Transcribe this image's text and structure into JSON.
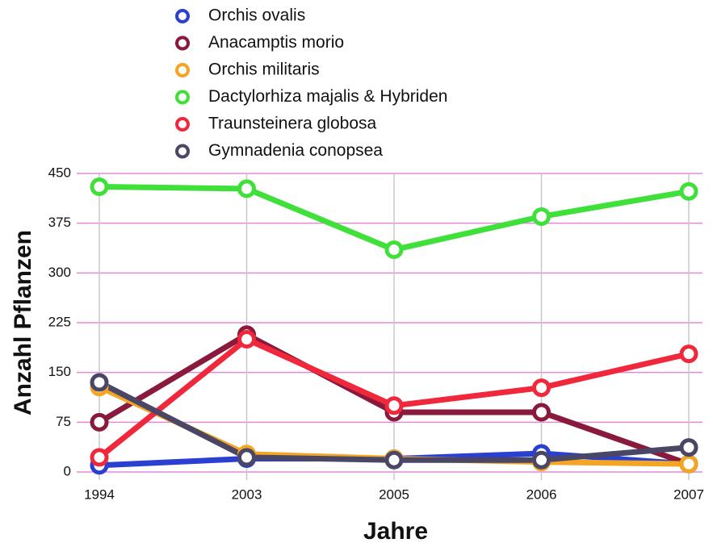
{
  "chart_data": {
    "type": "line",
    "categories": [
      "1994",
      "2003",
      "2005",
      "2006",
      "2007"
    ],
    "series": [
      {
        "name": "Orchis ovalis",
        "color": "#2b3fd0",
        "values": [
          10,
          20,
          20,
          28,
          12
        ]
      },
      {
        "name": "Anacamptis morio",
        "color": "#8a1a3c",
        "values": [
          75,
          207,
          90,
          90,
          12
        ]
      },
      {
        "name": "Orchis militaris",
        "color": "#f5a524",
        "values": [
          128,
          27,
          20,
          15,
          12
        ]
      },
      {
        "name": "Dactylorhiza majalis & Hybriden",
        "color": "#3fe03a",
        "values": [
          430,
          427,
          335,
          385,
          423
        ]
      },
      {
        "name": "Traunsteinera globosa",
        "color": "#f0283c",
        "values": [
          22,
          200,
          100,
          127,
          178
        ]
      },
      {
        "name": "Gymnadenia conopsea",
        "color": "#4a4766",
        "values": [
          135,
          22,
          18,
          18,
          37
        ]
      }
    ],
    "ylim": [
      0,
      450
    ],
    "yticks": [
      0,
      75,
      150,
      225,
      300,
      375,
      450
    ],
    "xlabel": "Jahre",
    "ylabel": "Anzahl Pflanzen",
    "grid": true
  }
}
